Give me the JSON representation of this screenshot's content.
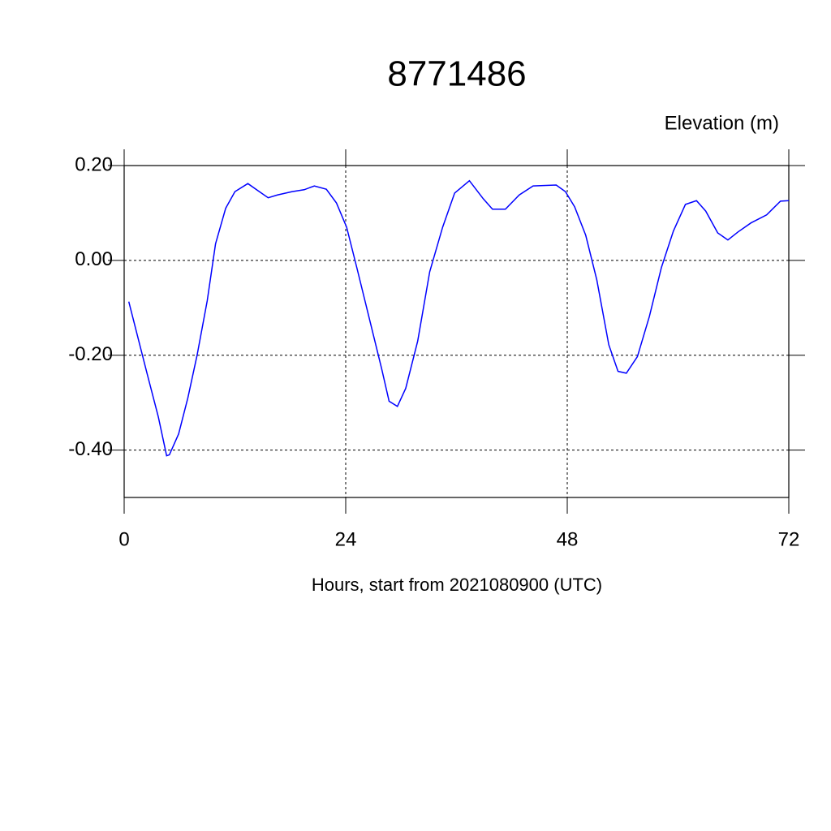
{
  "chart_data": {
    "type": "line",
    "title": "8771486",
    "y_label": "Elevation (m)",
    "x_label": "Hours, start from 2021080900 (UTC)",
    "x": [
      0.5,
      2.5,
      3.7,
      4.6,
      4.9,
      5.9,
      6.9,
      7.9,
      9.0,
      9.9,
      11.0,
      12.0,
      13.4,
      14.5,
      15.6,
      16.6,
      18.2,
      19.5,
      20.6,
      21.9,
      23.0,
      24.1,
      25.2,
      26.5,
      27.9,
      28.7,
      29.6,
      30.5,
      31.8,
      33.1,
      34.5,
      35.8,
      37.4,
      38.9,
      39.9,
      41.3,
      42.8,
      44.3,
      46.8,
      47.8,
      48.8,
      50.0,
      51.2,
      52.5,
      53.5,
      54.4,
      55.6,
      56.9,
      58.2,
      59.5,
      60.8,
      62.0,
      63.0,
      64.3,
      65.4,
      66.5,
      67.9,
      69.6,
      71.1,
      72.0
    ],
    "series": [
      {
        "color": "#0000ff",
        "values": [
          -0.087,
          -0.24,
          -0.33,
          -0.412,
          -0.41,
          -0.366,
          -0.29,
          -0.2,
          -0.085,
          0.035,
          0.11,
          0.145,
          0.162,
          0.147,
          0.132,
          0.138,
          0.145,
          0.149,
          0.157,
          0.15,
          0.121,
          0.07,
          -0.015,
          -0.118,
          -0.229,
          -0.297,
          -0.308,
          -0.27,
          -0.17,
          -0.024,
          0.07,
          0.142,
          0.168,
          0.13,
          0.108,
          0.108,
          0.138,
          0.157,
          0.159,
          0.145,
          0.113,
          0.053,
          -0.041,
          -0.178,
          -0.234,
          -0.238,
          -0.203,
          -0.118,
          -0.015,
          0.062,
          0.118,
          0.126,
          0.104,
          0.058,
          0.043,
          0.06,
          0.079,
          0.096,
          0.125,
          0.126
        ]
      }
    ],
    "xlim": [
      0,
      72
    ],
    "xticks": [
      0,
      24,
      48,
      72
    ],
    "ylim": [
      -0.5,
      0.2
    ],
    "yticks": [
      {
        "value": 0.2,
        "label": "0.20"
      },
      {
        "value": 0,
        "label": "0.00"
      },
      {
        "value": -0.2,
        "label": "-0.20"
      },
      {
        "value": -0.4,
        "label": "-0.40"
      }
    ],
    "grid": true
  }
}
